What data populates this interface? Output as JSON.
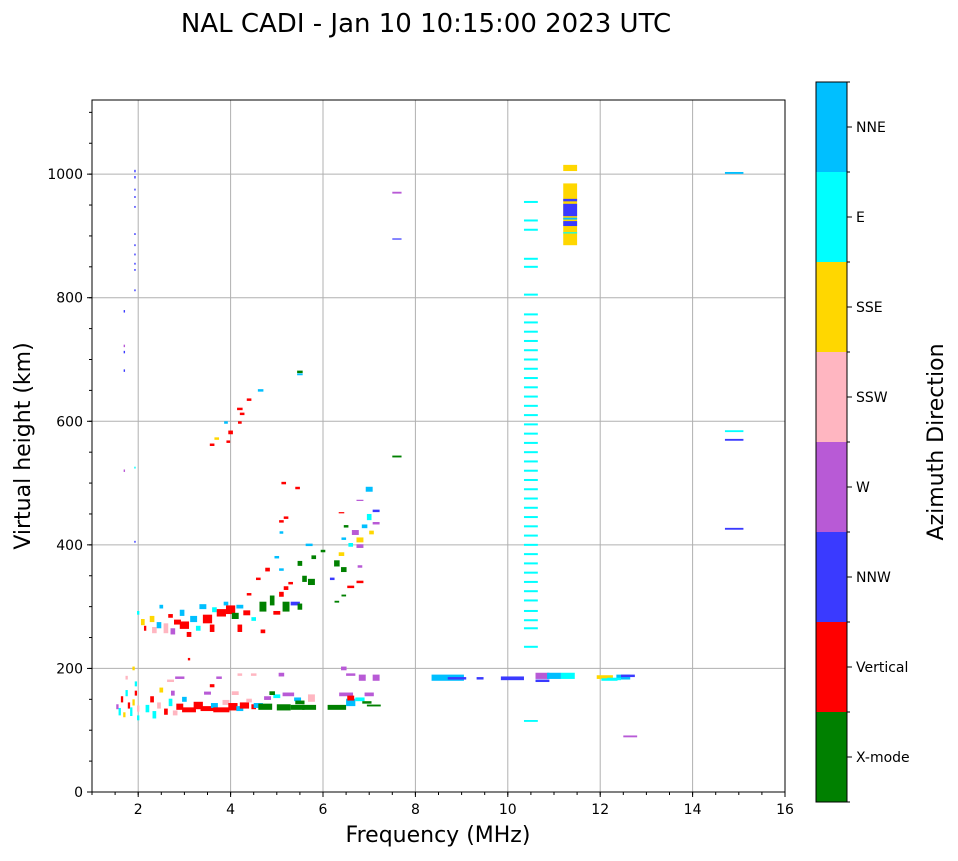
{
  "chart_data": {
    "type": "scatter",
    "title": "NAL CADI - Jan 10 10:15:00 2023 UTC",
    "xlabel": "Frequency (MHz)",
    "ylabel": "Virtual height (km)",
    "xlim": [
      1,
      16
    ],
    "ylim": [
      0,
      1120
    ],
    "xticks": [
      2,
      4,
      6,
      8,
      10,
      12,
      14,
      16
    ],
    "yticks": [
      0,
      200,
      400,
      600,
      800,
      1000
    ],
    "grid": true,
    "colorbar": {
      "label": "Azimuth Direction",
      "categories": [
        {
          "name": "X-mode",
          "color": "#008000"
        },
        {
          "name": "Vertical",
          "color": "#ff0000"
        },
        {
          "name": "NNW",
          "color": "#3a3aff"
        },
        {
          "name": "W",
          "color": "#b85ad6"
        },
        {
          "name": "SSW",
          "color": "#ffb6c1"
        },
        {
          "name": "SSE",
          "color": "#ffd700"
        },
        {
          "name": "E",
          "color": "#00ffff"
        },
        {
          "name": "NNE",
          "color": "#00bfff"
        }
      ]
    },
    "point_format": [
      "frequency_MHz",
      "height_km",
      "category_index",
      "freq_width_MHz",
      "height_span_km"
    ],
    "points": [
      [
        1.55,
        138,
        3,
        0.05,
        8
      ],
      [
        1.6,
        130,
        6,
        0.05,
        12
      ],
      [
        1.65,
        150,
        1,
        0.05,
        10
      ],
      [
        1.7,
        125,
        5,
        0.05,
        8
      ],
      [
        1.75,
        160,
        6,
        0.05,
        10
      ],
      [
        1.8,
        140,
        1,
        0.05,
        10
      ],
      [
        1.85,
        130,
        6,
        0.05,
        14
      ],
      [
        1.9,
        145,
        5,
        0.05,
        10
      ],
      [
        1.95,
        160,
        1,
        0.05,
        8
      ],
      [
        1.95,
        175,
        6,
        0.05,
        8
      ],
      [
        2.0,
        135,
        4,
        0.05,
        10
      ],
      [
        2.0,
        120,
        6,
        0.05,
        8
      ],
      [
        1.9,
        200,
        5,
        0.05,
        6
      ],
      [
        1.75,
        185,
        4,
        0.05,
        6
      ],
      [
        2.2,
        135,
        6,
        0.08,
        12
      ],
      [
        2.3,
        150,
        1,
        0.08,
        10
      ],
      [
        2.35,
        125,
        6,
        0.08,
        12
      ],
      [
        2.45,
        140,
        4,
        0.08,
        10
      ],
      [
        2.5,
        165,
        5,
        0.08,
        8
      ],
      [
        2.6,
        130,
        1,
        0.08,
        10
      ],
      [
        2.7,
        145,
        6,
        0.08,
        12
      ],
      [
        2.75,
        160,
        3,
        0.08,
        8
      ],
      [
        2.8,
        128,
        4,
        0.1,
        8
      ],
      [
        2.9,
        138,
        1,
        0.15,
        10
      ],
      [
        3.0,
        150,
        7,
        0.1,
        8
      ],
      [
        3.1,
        133,
        1,
        0.3,
        8
      ],
      [
        3.3,
        140,
        1,
        0.2,
        12
      ],
      [
        3.5,
        135,
        1,
        0.3,
        8
      ],
      [
        3.65,
        140,
        7,
        0.15,
        8
      ],
      [
        3.8,
        133,
        1,
        0.35,
        8
      ],
      [
        3.9,
        145,
        4,
        0.15,
        8
      ],
      [
        4.05,
        138,
        1,
        0.2,
        12
      ],
      [
        4.2,
        135,
        7,
        0.15,
        8
      ],
      [
        4.3,
        140,
        1,
        0.2,
        10
      ],
      [
        4.1,
        160,
        4,
        0.15,
        6
      ],
      [
        3.6,
        172,
        1,
        0.1,
        5
      ],
      [
        3.5,
        160,
        3,
        0.15,
        5
      ],
      [
        2.9,
        185,
        3,
        0.2,
        4
      ],
      [
        3.1,
        215,
        1,
        0.05,
        4
      ],
      [
        2.7,
        180,
        4,
        0.15,
        4
      ],
      [
        3.75,
        185,
        3,
        0.12,
        4
      ],
      [
        4.2,
        190,
        4,
        0.1,
        4
      ],
      [
        4.5,
        190,
        4,
        0.12,
        4
      ],
      [
        4.4,
        148,
        4,
        0.12,
        6
      ],
      [
        4.5,
        138,
        1,
        0.1,
        8
      ],
      [
        4.6,
        140,
        7,
        0.2,
        8
      ],
      [
        4.75,
        138,
        0,
        0.3,
        10
      ],
      [
        4.8,
        152,
        3,
        0.15,
        6
      ],
      [
        5.0,
        155,
        6,
        0.15,
        6
      ],
      [
        5.15,
        137,
        0,
        0.3,
        10
      ],
      [
        5.25,
        158,
        3,
        0.25,
        6
      ],
      [
        5.45,
        137,
        0,
        0.3,
        8
      ],
      [
        5.7,
        137,
        0,
        0.3,
        8
      ],
      [
        5.45,
        150,
        7,
        0.15,
        6
      ],
      [
        5.5,
        145,
        0,
        0.2,
        6
      ],
      [
        5.75,
        152,
        4,
        0.15,
        12
      ],
      [
        5.1,
        190,
        3,
        0.12,
        6
      ],
      [
        4.9,
        160,
        0,
        0.12,
        6
      ],
      [
        6.3,
        137,
        0,
        0.4,
        8
      ],
      [
        6.5,
        158,
        3,
        0.3,
        6
      ],
      [
        6.6,
        145,
        7,
        0.2,
        12
      ],
      [
        6.6,
        152,
        1,
        0.15,
        8
      ],
      [
        6.8,
        150,
        6,
        0.2,
        6
      ],
      [
        6.95,
        145,
        0,
        0.2,
        4
      ],
      [
        7.0,
        158,
        3,
        0.2,
        6
      ],
      [
        7.15,
        185,
        3,
        0.15,
        10
      ],
      [
        6.85,
        185,
        3,
        0.15,
        10
      ],
      [
        6.6,
        190,
        3,
        0.2,
        4
      ],
      [
        6.45,
        200,
        3,
        0.12,
        6
      ],
      [
        7.1,
        140,
        0,
        0.3,
        3
      ],
      [
        8.7,
        185,
        7,
        0.7,
        10
      ],
      [
        8.9,
        184,
        2,
        0.4,
        4
      ],
      [
        9.4,
        184,
        2,
        0.15,
        4
      ],
      [
        10.1,
        184,
        2,
        0.5,
        6
      ],
      [
        10.75,
        188,
        3,
        0.3,
        10
      ],
      [
        10.75,
        180,
        2,
        0.3,
        4
      ],
      [
        11.0,
        188,
        7,
        0.3,
        10
      ],
      [
        11.3,
        188,
        6,
        0.3,
        10
      ],
      [
        12.1,
        186,
        5,
        0.35,
        6
      ],
      [
        12.2,
        182,
        6,
        0.35,
        4
      ],
      [
        12.5,
        186,
        7,
        0.3,
        8
      ],
      [
        12.6,
        188,
        2,
        0.3,
        4
      ],
      [
        12.3,
        183,
        6,
        0.3,
        4
      ],
      [
        12.65,
        90,
        3,
        0.3,
        3
      ],
      [
        10.5,
        115,
        6,
        0.3,
        3
      ],
      [
        2.0,
        290,
        6,
        0.05,
        6
      ],
      [
        2.1,
        275,
        5,
        0.08,
        10
      ],
      [
        2.15,
        265,
        1,
        0.05,
        8
      ],
      [
        2.3,
        280,
        5,
        0.1,
        10
      ],
      [
        2.35,
        262,
        4,
        0.1,
        10
      ],
      [
        2.45,
        270,
        7,
        0.1,
        10
      ],
      [
        2.5,
        300,
        7,
        0.08,
        6
      ],
      [
        2.6,
        265,
        4,
        0.1,
        16
      ],
      [
        2.7,
        285,
        1,
        0.1,
        6
      ],
      [
        2.75,
        260,
        3,
        0.1,
        10
      ],
      [
        2.85,
        275,
        1,
        0.15,
        8
      ],
      [
        2.95,
        290,
        7,
        0.1,
        10
      ],
      [
        3.0,
        270,
        1,
        0.2,
        12
      ],
      [
        3.1,
        255,
        1,
        0.1,
        8
      ],
      [
        3.2,
        280,
        7,
        0.15,
        10
      ],
      [
        3.3,
        265,
        6,
        0.1,
        8
      ],
      [
        3.4,
        300,
        7,
        0.15,
        8
      ],
      [
        3.5,
        280,
        1,
        0.2,
        14
      ],
      [
        3.6,
        265,
        1,
        0.1,
        12
      ],
      [
        3.65,
        295,
        6,
        0.1,
        8
      ],
      [
        3.8,
        290,
        1,
        0.2,
        12
      ],
      [
        3.9,
        305,
        7,
        0.1,
        6
      ],
      [
        4.0,
        295,
        1,
        0.2,
        14
      ],
      [
        4.1,
        285,
        0,
        0.15,
        10
      ],
      [
        4.2,
        300,
        7,
        0.15,
        6
      ],
      [
        4.2,
        265,
        1,
        0.1,
        12
      ],
      [
        4.35,
        290,
        1,
        0.15,
        8
      ],
      [
        4.5,
        280,
        6,
        0.1,
        6
      ],
      [
        4.7,
        300,
        0,
        0.15,
        16
      ],
      [
        4.7,
        260,
        1,
        0.1,
        6
      ],
      [
        4.9,
        310,
        0,
        0.1,
        16
      ],
      [
        5.0,
        290,
        1,
        0.15,
        6
      ],
      [
        5.2,
        300,
        0,
        0.15,
        16
      ],
      [
        5.1,
        320,
        1,
        0.1,
        8
      ],
      [
        5.2,
        330,
        1,
        0.1,
        6
      ],
      [
        5.4,
        305,
        2,
        0.2,
        6
      ],
      [
        5.5,
        300,
        0,
        0.1,
        10
      ],
      [
        5.6,
        345,
        0,
        0.1,
        10
      ],
      [
        5.5,
        370,
        0,
        0.1,
        8
      ],
      [
        5.75,
        340,
        0,
        0.15,
        10
      ],
      [
        5.8,
        380,
        0,
        0.1,
        6
      ],
      [
        5.3,
        338,
        1,
        0.1,
        4
      ],
      [
        5.1,
        360,
        7,
        0.1,
        4
      ],
      [
        5.0,
        380,
        7,
        0.1,
        4
      ],
      [
        4.8,
        360,
        1,
        0.1,
        6
      ],
      [
        4.6,
        345,
        1,
        0.1,
        4
      ],
      [
        4.4,
        320,
        1,
        0.1,
        4
      ],
      [
        5.1,
        420,
        7,
        0.08,
        4
      ],
      [
        5.1,
        438,
        1,
        0.1,
        4
      ],
      [
        5.2,
        444,
        1,
        0.1,
        4
      ],
      [
        5.45,
        492,
        1,
        0.1,
        4
      ],
      [
        5.15,
        500,
        1,
        0.1,
        4
      ],
      [
        5.7,
        400,
        7,
        0.15,
        4
      ],
      [
        6.0,
        390,
        0,
        0.1,
        4
      ],
      [
        6.3,
        370,
        0,
        0.12,
        10
      ],
      [
        6.45,
        360,
        0,
        0.12,
        8
      ],
      [
        6.4,
        385,
        5,
        0.12,
        6
      ],
      [
        6.45,
        410,
        7,
        0.1,
        4
      ],
      [
        6.5,
        430,
        0,
        0.1,
        4
      ],
      [
        6.6,
        400,
        6,
        0.1,
        6
      ],
      [
        6.7,
        420,
        3,
        0.15,
        8
      ],
      [
        6.8,
        408,
        5,
        0.15,
        8
      ],
      [
        6.8,
        398,
        3,
        0.15,
        6
      ],
      [
        6.9,
        430,
        7,
        0.12,
        6
      ],
      [
        7.0,
        445,
        6,
        0.1,
        10
      ],
      [
        7.05,
        420,
        5,
        0.1,
        6
      ],
      [
        7.15,
        435,
        3,
        0.15,
        4
      ],
      [
        7.15,
        455,
        2,
        0.15,
        4
      ],
      [
        7.0,
        490,
        7,
        0.15,
        8
      ],
      [
        6.8,
        472,
        3,
        0.15,
        2
      ],
      [
        6.4,
        452,
        1,
        0.12,
        2
      ],
      [
        6.6,
        332,
        1,
        0.15,
        4
      ],
      [
        6.8,
        340,
        1,
        0.15,
        4
      ],
      [
        6.8,
        365,
        3,
        0.1,
        4
      ],
      [
        6.3,
        308,
        0,
        0.1,
        3
      ],
      [
        6.45,
        318,
        0,
        0.1,
        3
      ],
      [
        6.2,
        345,
        2,
        0.1,
        4
      ],
      [
        3.6,
        562,
        1,
        0.1,
        4
      ],
      [
        3.7,
        572,
        5,
        0.1,
        4
      ],
      [
        3.9,
        598,
        7,
        0.08,
        4
      ],
      [
        4.0,
        582,
        1,
        0.1,
        6
      ],
      [
        3.95,
        567,
        1,
        0.08,
        4
      ],
      [
        4.2,
        620,
        1,
        0.12,
        4
      ],
      [
        4.25,
        612,
        1,
        0.1,
        4
      ],
      [
        4.2,
        598,
        1,
        0.08,
        4
      ],
      [
        4.4,
        635,
        1,
        0.1,
        4
      ],
      [
        4.65,
        650,
        7,
        0.12,
        4
      ],
      [
        5.5,
        680,
        0,
        0.12,
        4
      ],
      [
        5.5,
        676,
        7,
        0.12,
        3
      ],
      [
        7.6,
        543,
        0,
        0.2,
        3
      ],
      [
        7.6,
        970,
        3,
        0.2,
        3
      ],
      [
        7.6,
        895,
        2,
        0.2,
        2
      ],
      [
        1.7,
        778,
        2,
        0.03,
        4
      ],
      [
        1.7,
        722,
        3,
        0.03,
        4
      ],
      [
        1.7,
        712,
        2,
        0.03,
        4
      ],
      [
        1.7,
        682,
        2,
        0.03,
        4
      ],
      [
        1.7,
        520,
        3,
        0.03,
        4
      ],
      [
        1.93,
        1005,
        2,
        0.03,
        4
      ],
      [
        1.93,
        995,
        2,
        0.03,
        4
      ],
      [
        1.93,
        975,
        2,
        0.03,
        3
      ],
      [
        1.93,
        963,
        2,
        0.03,
        3
      ],
      [
        1.93,
        947,
        2,
        0.03,
        3
      ],
      [
        1.93,
        903,
        2,
        0.03,
        3
      ],
      [
        1.93,
        885,
        2,
        0.03,
        3
      ],
      [
        1.93,
        870,
        2,
        0.03,
        3
      ],
      [
        1.93,
        855,
        2,
        0.03,
        3
      ],
      [
        1.93,
        845,
        2,
        0.03,
        3
      ],
      [
        1.93,
        812,
        2,
        0.03,
        3
      ],
      [
        1.93,
        525,
        6,
        0.03,
        3
      ],
      [
        1.93,
        405,
        2,
        0.03,
        3
      ],
      [
        11.35,
        1010,
        5,
        0.3,
        10
      ],
      [
        11.35,
        935,
        5,
        0.3,
        100
      ],
      [
        11.35,
        942,
        2,
        0.3,
        20
      ],
      [
        11.35,
        920,
        2,
        0.3,
        8
      ],
      [
        11.35,
        928,
        7,
        0.3,
        3
      ],
      [
        11.35,
        958,
        2,
        0.3,
        4
      ],
      [
        11.35,
        905,
        6,
        0.3,
        2
      ],
      [
        14.9,
        1002,
        7,
        0.4,
        3
      ],
      [
        14.9,
        584,
        6,
        0.4,
        3
      ],
      [
        14.9,
        570,
        2,
        0.4,
        3
      ],
      [
        14.9,
        426,
        2,
        0.4,
        3
      ]
    ],
    "column_series": {
      "frequency_MHz": 10.5,
      "category_index": 6,
      "heights_km": [
        235,
        265,
        278,
        293,
        310,
        325,
        340,
        355,
        370,
        385,
        400,
        415,
        430,
        445,
        460,
        475,
        490,
        505,
        520,
        535,
        550,
        565,
        580,
        595,
        610,
        625,
        640,
        655,
        670,
        685,
        700,
        715,
        730,
        745,
        760,
        773,
        805,
        850,
        863,
        910,
        925,
        955
      ]
    }
  }
}
